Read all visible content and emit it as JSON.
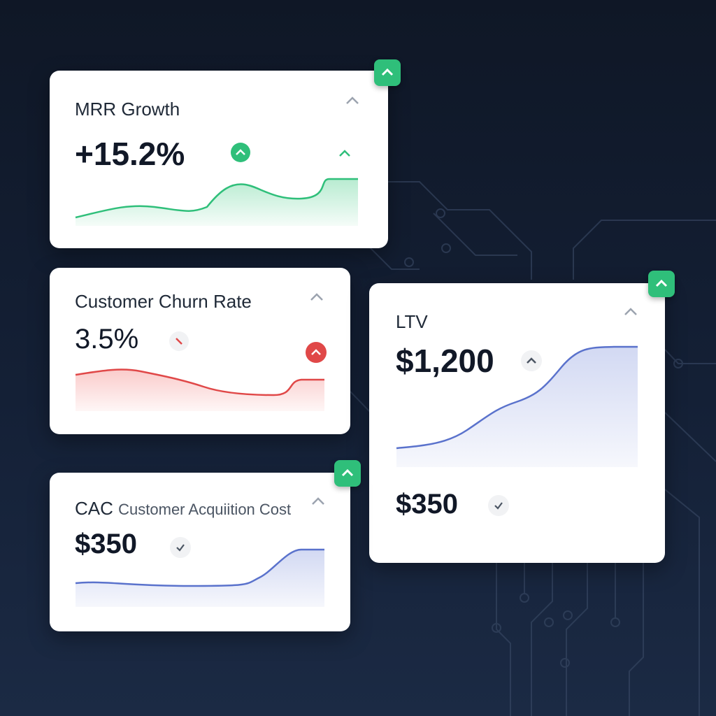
{
  "cards": [
    {
      "title": "MRR Growth",
      "value": "+15.2%"
    },
    {
      "title": "Customer Churn Rate",
      "value": "3.5%"
    },
    {
      "title": "LTV",
      "value": "$1,200",
      "secondary": "$350"
    },
    {
      "title": "CAC",
      "subtitle": "Customer Acquiition Cost",
      "value": "$350"
    }
  ]
}
